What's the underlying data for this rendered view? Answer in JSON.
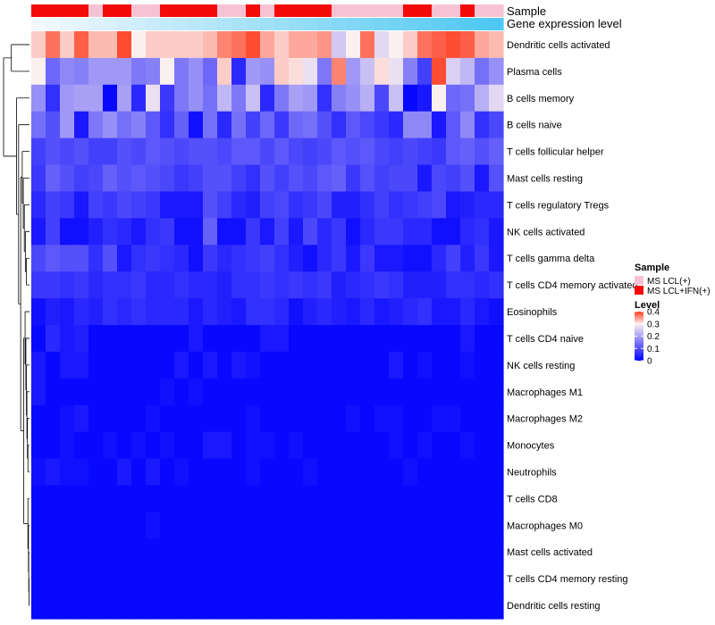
{
  "chart_data": {
    "type": "heatmap",
    "title": "",
    "annotation_labels": [
      "Sample",
      "Gene expression level"
    ],
    "sample_groups": [
      "MS LCL(+)",
      "MS LCL+IFN(+)"
    ],
    "sample_group_colors": [
      "#f7c3d4",
      "#f50a0a"
    ],
    "sample_annotation": [
      1,
      1,
      1,
      1,
      0,
      1,
      1,
      0,
      0,
      1,
      1,
      1,
      1,
      0,
      0,
      1,
      0,
      1,
      1,
      1,
      1,
      0,
      0,
      0,
      0,
      0,
      1,
      1,
      0,
      0,
      1,
      0,
      0
    ],
    "gene_expression_gradient": [
      "#f2f8fd",
      "#4ec8f2"
    ],
    "rows": [
      "Dendritic cells activated",
      "Plasma cells",
      "B cells memory",
      "B cells naive",
      "T cells follicular helper",
      "Mast cells resting",
      "T cells regulatory  Tregs",
      "NK cells activated",
      "T cells gamma delta",
      "T cells CD4 memory activated",
      "Eosinophils",
      "T cells CD4 naive",
      "NK cells resting",
      "Macrophages M1",
      "Macrophages M2",
      "Monocytes",
      "Neutrophils",
      "T cells CD8",
      "Macrophages M0",
      "Mast cells activated",
      "T cells CD4 memory resting",
      "Dendritic cells resting"
    ],
    "values": [
      [
        0.32,
        0.37,
        0.32,
        0.38,
        0.33,
        0.33,
        0.39,
        0.3,
        0.32,
        0.32,
        0.32,
        0.32,
        0.33,
        0.36,
        0.37,
        0.39,
        0.34,
        0.32,
        0.34,
        0.34,
        0.35,
        0.25,
        0.3,
        0.37,
        0.27,
        0.3,
        0.32,
        0.37,
        0.38,
        0.39,
        0.38,
        0.34,
        0.33
      ],
      [
        0.3,
        0.13,
        0.17,
        0.16,
        0.19,
        0.19,
        0.19,
        0.15,
        0.16,
        0.3,
        0.15,
        0.18,
        0.13,
        0.32,
        0.05,
        0.19,
        0.18,
        0.32,
        0.31,
        0.28,
        0.15,
        0.36,
        0.19,
        0.24,
        0.31,
        0.28,
        0.16,
        0.08,
        0.39,
        0.26,
        0.23,
        0.14,
        0.18
      ],
      [
        0.18,
        0.06,
        0.19,
        0.2,
        0.2,
        0.01,
        0.2,
        0.05,
        0.28,
        0.07,
        0.15,
        0.18,
        0.14,
        0.23,
        0.15,
        0.24,
        0.05,
        0.15,
        0.2,
        0.19,
        0.06,
        0.16,
        0.18,
        0.22,
        0.09,
        0.24,
        0.01,
        0.03,
        0.3,
        0.13,
        0.14,
        0.22,
        0.27
      ],
      [
        0.14,
        0.1,
        0.19,
        0.03,
        0.15,
        0.18,
        0.14,
        0.16,
        0.11,
        0.06,
        0.12,
        0.02,
        0.14,
        0.05,
        0.14,
        0.08,
        0.13,
        0.07,
        0.13,
        0.14,
        0.1,
        0.06,
        0.11,
        0.09,
        0.07,
        0.05,
        0.17,
        0.17,
        0.03,
        0.11,
        0.17,
        0.06,
        0.09
      ],
      [
        0.08,
        0.1,
        0.09,
        0.1,
        0.08,
        0.08,
        0.1,
        0.09,
        0.11,
        0.1,
        0.09,
        0.1,
        0.1,
        0.09,
        0.11,
        0.11,
        0.09,
        0.11,
        0.09,
        0.08,
        0.09,
        0.11,
        0.1,
        0.11,
        0.09,
        0.08,
        0.09,
        0.08,
        0.07,
        0.11,
        0.12,
        0.1,
        0.12
      ],
      [
        0.07,
        0.12,
        0.1,
        0.08,
        0.09,
        0.12,
        0.1,
        0.11,
        0.1,
        0.09,
        0.07,
        0.08,
        0.1,
        0.1,
        0.08,
        0.06,
        0.1,
        0.08,
        0.1,
        0.09,
        0.11,
        0.12,
        0.07,
        0.1,
        0.08,
        0.09,
        0.09,
        0.03,
        0.09,
        0.08,
        0.1,
        0.03,
        0.1
      ],
      [
        0.05,
        0.08,
        0.07,
        0.03,
        0.08,
        0.07,
        0.09,
        0.08,
        0.07,
        0.03,
        0.03,
        0.03,
        0.1,
        0.08,
        0.05,
        0.04,
        0.08,
        0.09,
        0.06,
        0.07,
        0.09,
        0.04,
        0.04,
        0.06,
        0.08,
        0.06,
        0.07,
        0.08,
        0.09,
        0.03,
        0.04,
        0.05,
        0.05
      ],
      [
        0.03,
        0.08,
        0.02,
        0.02,
        0.04,
        0.06,
        0.05,
        0.03,
        0.06,
        0.07,
        0.02,
        0.02,
        0.12,
        0.02,
        0.02,
        0.07,
        0.03,
        0.08,
        0.03,
        0.09,
        0.05,
        0.07,
        0.02,
        0.05,
        0.07,
        0.07,
        0.05,
        0.05,
        0.02,
        0.02,
        0.05,
        0.06,
        0.03
      ],
      [
        0.09,
        0.11,
        0.1,
        0.1,
        0.06,
        0.1,
        0.03,
        0.06,
        0.07,
        0.06,
        0.05,
        0.02,
        0.07,
        0.05,
        0.06,
        0.07,
        0.08,
        0.06,
        0.04,
        0.02,
        0.05,
        0.07,
        0.03,
        0.07,
        0.03,
        0.03,
        0.02,
        0.02,
        0.05,
        0.08,
        0.04,
        0.07,
        0.03
      ],
      [
        0.07,
        0.07,
        0.06,
        0.07,
        0.05,
        0.06,
        0.06,
        0.07,
        0.05,
        0.05,
        0.06,
        0.05,
        0.05,
        0.04,
        0.06,
        0.06,
        0.07,
        0.06,
        0.07,
        0.06,
        0.07,
        0.04,
        0.05,
        0.06,
        0.07,
        0.06,
        0.04,
        0.04,
        0.04,
        0.06,
        0.06,
        0.05,
        0.06
      ],
      [
        0.02,
        0.04,
        0.03,
        0.05,
        0.04,
        0.06,
        0.05,
        0.06,
        0.05,
        0.05,
        0.05,
        0.03,
        0.05,
        0.04,
        0.03,
        0.06,
        0.06,
        0.05,
        0.02,
        0.04,
        0.05,
        0.04,
        0.03,
        0.05,
        0.03,
        0.04,
        0.05,
        0.06,
        0.03,
        0.03,
        0.05,
        0.03,
        0.02
      ],
      [
        0.01,
        0.05,
        0.03,
        0.04,
        0.01,
        0.01,
        0.01,
        0.01,
        0.01,
        0.01,
        0.01,
        0.03,
        0.01,
        0.01,
        0.01,
        0.01,
        0.03,
        0.03,
        0.01,
        0.01,
        0.01,
        0.01,
        0.01,
        0.01,
        0.01,
        0.01,
        0.01,
        0.01,
        0.01,
        0.01,
        0.03,
        0.01,
        0.01
      ],
      [
        0.03,
        0.01,
        0.03,
        0.03,
        0.01,
        0.01,
        0.01,
        0.01,
        0.01,
        0.01,
        0.03,
        0.01,
        0.03,
        0.01,
        0.03,
        0.02,
        0.01,
        0.01,
        0.01,
        0.01,
        0.01,
        0.01,
        0.01,
        0.01,
        0.01,
        0.03,
        0.01,
        0.02,
        0.01,
        0.01,
        0.02,
        0.01,
        0.01
      ],
      [
        0.03,
        0.01,
        0.01,
        0.01,
        0.01,
        0.01,
        0.01,
        0.01,
        0.01,
        0.02,
        0.01,
        0.02,
        0.01,
        0.01,
        0.01,
        0.01,
        0.01,
        0.01,
        0.01,
        0.01,
        0.01,
        0.01,
        0.01,
        0.01,
        0.01,
        0.01,
        0.01,
        0.01,
        0.01,
        0.01,
        0.01,
        0.01,
        0.01
      ],
      [
        0.01,
        0.01,
        0.02,
        0.03,
        0.01,
        0.01,
        0.01,
        0.01,
        0.02,
        0.01,
        0.01,
        0.01,
        0.01,
        0.01,
        0.01,
        0.02,
        0.01,
        0.01,
        0.01,
        0.01,
        0.01,
        0.01,
        0.02,
        0.01,
        0.02,
        0.02,
        0.01,
        0.01,
        0.02,
        0.02,
        0.01,
        0.01,
        0.01
      ],
      [
        0.01,
        0.01,
        0.02,
        0.01,
        0.01,
        0.02,
        0.01,
        0.02,
        0.01,
        0.02,
        0.01,
        0.01,
        0.03,
        0.03,
        0.01,
        0.02,
        0.02,
        0.01,
        0.02,
        0.01,
        0.01,
        0.01,
        0.01,
        0.01,
        0.01,
        0.02,
        0.01,
        0.02,
        0.01,
        0.01,
        0.02,
        0.01,
        0.01
      ],
      [
        0.02,
        0.03,
        0.02,
        0.02,
        0.01,
        0.01,
        0.03,
        0.01,
        0.03,
        0.01,
        0.02,
        0.01,
        0.01,
        0.01,
        0.01,
        0.02,
        0.01,
        0.01,
        0.01,
        0.02,
        0.01,
        0.01,
        0.01,
        0.01,
        0.01,
        0.01,
        0.02,
        0.01,
        0.01,
        0.01,
        0.01,
        0.01,
        0.01
      ],
      [
        0.01,
        0.01,
        0.01,
        0.01,
        0.01,
        0.01,
        0.01,
        0.01,
        0.01,
        0.01,
        0.01,
        0.01,
        0.01,
        0.01,
        0.01,
        0.01,
        0.01,
        0.01,
        0.01,
        0.01,
        0.01,
        0.01,
        0.01,
        0.01,
        0.01,
        0.01,
        0.01,
        0.01,
        0.01,
        0.01,
        0.01,
        0.01,
        0.01
      ],
      [
        0.01,
        0.01,
        0.01,
        0.01,
        0.01,
        0.01,
        0.01,
        0.01,
        0.02,
        0.01,
        0.01,
        0.01,
        0.01,
        0.01,
        0.01,
        0.01,
        0.01,
        0.01,
        0.01,
        0.01,
        0.01,
        0.01,
        0.01,
        0.01,
        0.01,
        0.01,
        0.01,
        0.01,
        0.01,
        0.01,
        0.01,
        0.01,
        0.01
      ],
      [
        0.01,
        0.01,
        0.01,
        0.01,
        0.01,
        0.01,
        0.01,
        0.01,
        0.01,
        0.01,
        0.01,
        0.01,
        0.01,
        0.01,
        0.01,
        0.01,
        0.01,
        0.01,
        0.01,
        0.01,
        0.01,
        0.01,
        0.01,
        0.01,
        0.01,
        0.01,
        0.01,
        0.01,
        0.01,
        0.01,
        0.01,
        0.01,
        0.01
      ],
      [
        0.01,
        0.01,
        0.01,
        0.01,
        0.01,
        0.01,
        0.01,
        0.01,
        0.01,
        0.01,
        0.01,
        0.01,
        0.01,
        0.01,
        0.01,
        0.01,
        0.01,
        0.01,
        0.01,
        0.01,
        0.01,
        0.01,
        0.01,
        0.01,
        0.01,
        0.01,
        0.01,
        0.01,
        0.01,
        0.01,
        0.01,
        0.01,
        0.01
      ],
      [
        0.01,
        0.01,
        0.01,
        0.01,
        0.01,
        0.01,
        0.01,
        0.01,
        0.01,
        0.01,
        0.01,
        0.01,
        0.01,
        0.01,
        0.01,
        0.01,
        0.01,
        0.01,
        0.01,
        0.01,
        0.01,
        0.01,
        0.01,
        0.01,
        0.01,
        0.01,
        0.01,
        0.01,
        0.01,
        0.01,
        0.01,
        0.01,
        0.01
      ]
    ],
    "color_scale": {
      "min": 0,
      "mid": 0.3,
      "max": 0.4,
      "colors": [
        "#0000ff",
        "#fbf0f0",
        "#fe3b1e"
      ]
    },
    "legend": {
      "sample_title": "Sample",
      "level_title": "Level",
      "level_ticks": [
        "0.4",
        "0.3",
        "0.2",
        "0.1",
        "0"
      ],
      "level_tick_values": [
        0.4,
        0.3,
        0.2,
        0.1,
        0
      ]
    }
  }
}
